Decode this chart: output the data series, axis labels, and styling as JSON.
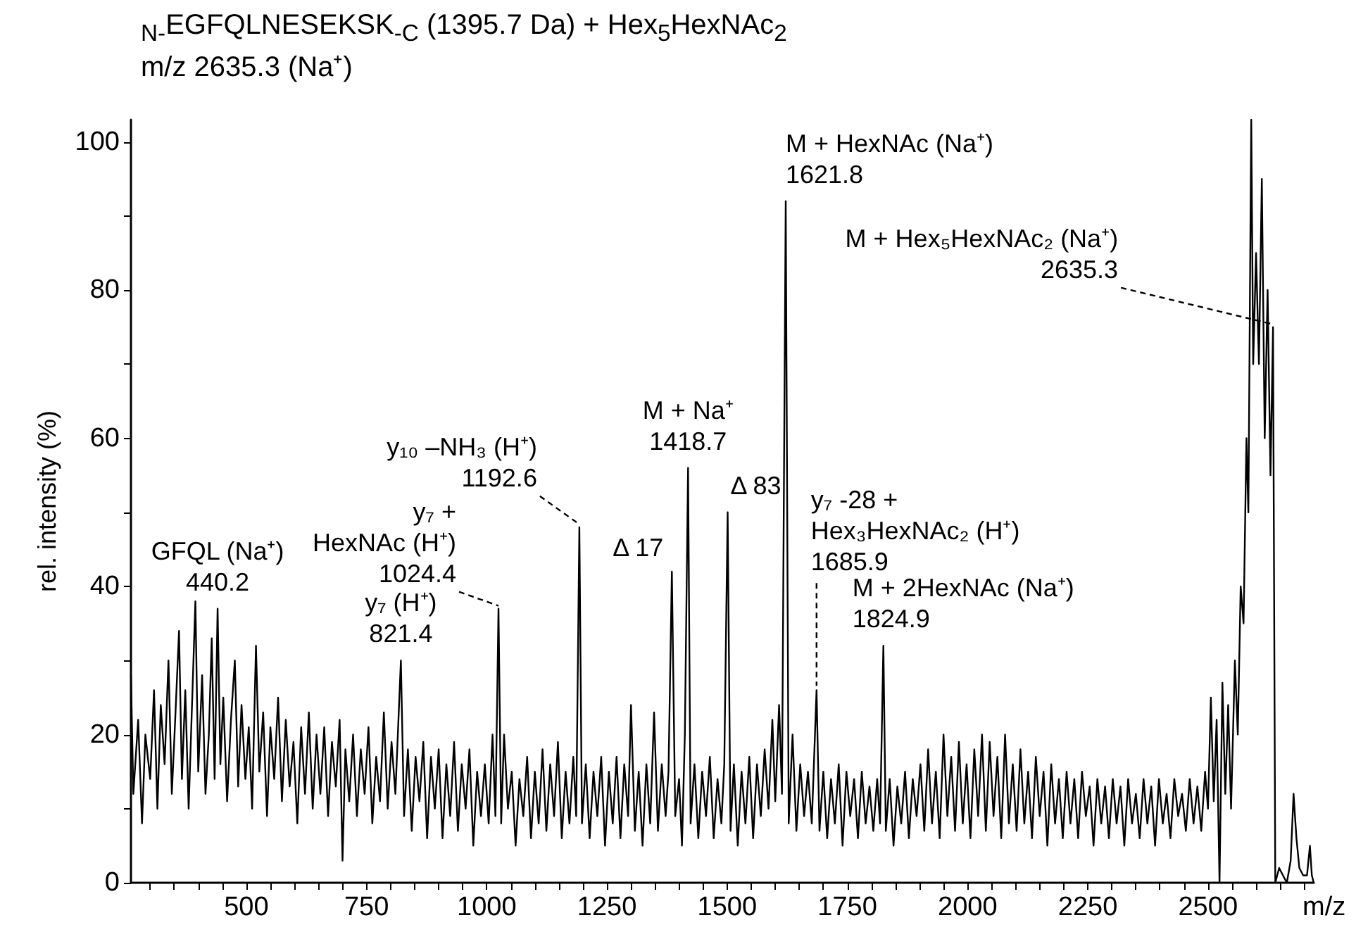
{
  "chart_data": {
    "type": "line",
    "title": "$_{N-}$EGFQLNESEKSK$_{-C}$ (1395.7 Da) + Hex$_{5}$HexNAc$_{2}$",
    "subtitle": "m/z 2635.3 (Na⁺)",
    "xlabel": "m/z",
    "ylabel": "rel. intensity (%)",
    "color": "#000000",
    "marker": "none",
    "x": [
      260,
      265,
      275,
      283,
      290,
      300,
      308,
      315,
      322,
      330,
      338,
      345,
      352,
      360,
      366,
      373,
      380,
      387,
      394,
      400,
      408,
      415,
      422,
      428,
      434,
      440.2,
      446,
      452,
      460,
      468,
      476,
      483,
      490,
      498,
      505,
      512,
      520,
      527,
      535,
      543,
      550,
      558,
      566,
      574,
      582,
      590,
      598,
      606,
      614,
      622,
      630,
      638,
      646,
      654,
      662,
      670,
      678,
      686,
      694,
      700,
      706,
      714,
      722,
      730,
      738,
      746,
      754,
      762,
      770,
      778,
      786,
      794,
      802,
      810,
      821.4,
      828,
      836,
      844,
      852,
      860,
      868,
      876,
      884,
      892,
      900,
      908,
      916,
      924,
      932,
      940,
      948,
      956,
      964,
      972,
      980,
      988,
      996,
      1004,
      1012,
      1018,
      1024.4,
      1030,
      1036,
      1044,
      1052,
      1060,
      1068,
      1076,
      1084,
      1092,
      1100,
      1108,
      1116,
      1124,
      1132,
      1140,
      1148,
      1156,
      1164,
      1172,
      1180,
      1186,
      1192.6,
      1198,
      1206,
      1214,
      1222,
      1230,
      1238,
      1246,
      1254,
      1262,
      1270,
      1278,
      1286,
      1294,
      1300,
      1308,
      1316,
      1324,
      1332,
      1340,
      1348,
      1356,
      1364,
      1372,
      1378,
      1385,
      1392,
      1400,
      1406,
      1412,
      1418.7,
      1424,
      1432,
      1440,
      1448,
      1456,
      1464,
      1472,
      1480,
      1488,
      1494,
      1501,
      1507,
      1514,
      1522,
      1530,
      1538,
      1546,
      1554,
      1562,
      1570,
      1578,
      1586,
      1594,
      1600,
      1608,
      1614,
      1621.8,
      1628,
      1636,
      1644,
      1652,
      1660,
      1668,
      1676,
      1685.9,
      1692,
      1700,
      1708,
      1716,
      1724,
      1732,
      1740,
      1748,
      1756,
      1764,
      1772,
      1780,
      1788,
      1796,
      1804,
      1812,
      1818,
      1824.9,
      1830,
      1838,
      1846,
      1854,
      1862,
      1870,
      1878,
      1886,
      1894,
      1902,
      1910,
      1918,
      1926,
      1934,
      1942,
      1950,
      1958,
      1966,
      1974,
      1982,
      1990,
      1998,
      2006,
      2014,
      2022,
      2030,
      2038,
      2046,
      2054,
      2062,
      2070,
      2078,
      2086,
      2094,
      2102,
      2110,
      2118,
      2126,
      2134,
      2142,
      2150,
      2158,
      2166,
      2174,
      2182,
      2190,
      2198,
      2206,
      2214,
      2222,
      2230,
      2238,
      2246,
      2254,
      2262,
      2270,
      2278,
      2286,
      2294,
      2302,
      2310,
      2318,
      2326,
      2334,
      2342,
      2350,
      2358,
      2366,
      2374,
      2382,
      2390,
      2398,
      2406,
      2414,
      2422,
      2430,
      2438,
      2446,
      2454,
      2462,
      2470,
      2478,
      2486,
      2494,
      2500,
      2506,
      2512,
      2518,
      2524,
      2530,
      2536,
      2542,
      2548,
      2556,
      2562,
      2568,
      2574,
      2580,
      2584,
      2590,
      2594,
      2600,
      2606,
      2612,
      2618,
      2624,
      2630,
      2635.3,
      2640,
      2648,
      2656,
      2664,
      2672,
      2678,
      2684,
      2690,
      2698,
      2706,
      2712,
      2716,
      2720
    ],
    "values": [
      28,
      12,
      22,
      8,
      20,
      14,
      26,
      10,
      24,
      16,
      30,
      12,
      22,
      34,
      14,
      26,
      10,
      24,
      38,
      15,
      28,
      12,
      20,
      33,
      14,
      37,
      16,
      25,
      11,
      22,
      30,
      13,
      24,
      14,
      21,
      10,
      32,
      15,
      23,
      9,
      21,
      14,
      25,
      11,
      22,
      13,
      19,
      8,
      21,
      12,
      23,
      10,
      20,
      12,
      21,
      9,
      19,
      13,
      22,
      3,
      18,
      11,
      20,
      9,
      18,
      12,
      21,
      8,
      17,
      11,
      23,
      10,
      19,
      12,
      30,
      9,
      18,
      7,
      17,
      11,
      19,
      6,
      17,
      10,
      18,
      6,
      16,
      9,
      19,
      7,
      16,
      10,
      18,
      5,
      15,
      9,
      16,
      8,
      20,
      9,
      37,
      8,
      20,
      10,
      15,
      5,
      14,
      9,
      17,
      6,
      15,
      8,
      18,
      7,
      16,
      9,
      19,
      6,
      15,
      8,
      17,
      9,
      48,
      8,
      16,
      6,
      15,
      9,
      17,
      5,
      15,
      8,
      17,
      6,
      16,
      9,
      24,
      7,
      15,
      5,
      16,
      8,
      23,
      7,
      16,
      9,
      15,
      42,
      9,
      14,
      5,
      20,
      56,
      8,
      16,
      6,
      15,
      9,
      17,
      6,
      14,
      8,
      16,
      50,
      7,
      16,
      5,
      15,
      8,
      17,
      6,
      16,
      9,
      18,
      10,
      22,
      11,
      24,
      12,
      92,
      8,
      20,
      7,
      16,
      9,
      15,
      8,
      26,
      7,
      15,
      6,
      14,
      8,
      16,
      5,
      15,
      9,
      14,
      6,
      15,
      8,
      13,
      7,
      14,
      8,
      32,
      7,
      14,
      5,
      13,
      8,
      15,
      6,
      14,
      9,
      16,
      7,
      18,
      8,
      15,
      6,
      20,
      9,
      17,
      7,
      19,
      8,
      16,
      6,
      18,
      9,
      20,
      7,
      19,
      9,
      17,
      6,
      20,
      8,
      16,
      7,
      18,
      8,
      15,
      6,
      17,
      9,
      15,
      5,
      16,
      8,
      14,
      6,
      15,
      8,
      14,
      6,
      15,
      9,
      13,
      5,
      14,
      8,
      13,
      6,
      14,
      8,
      13,
      5,
      14,
      8,
      12,
      6,
      14,
      8,
      13,
      5,
      14,
      8,
      12,
      6,
      14,
      9,
      12,
      7,
      14,
      8,
      13,
      7,
      15,
      10,
      25,
      11,
      22,
      0,
      27,
      12,
      24,
      10,
      30,
      20,
      40,
      35,
      60,
      50,
      103,
      70,
      85,
      70,
      95,
      60,
      80,
      55,
      75,
      0,
      2,
      1,
      0,
      3,
      12,
      6,
      2,
      1,
      1,
      5,
      1,
      0
    ],
    "xlim": [
      260,
      2720
    ],
    "ylim": [
      0,
      103
    ],
    "xticks": [
      {
        "value": 300,
        "label": null
      },
      {
        "value": 350,
        "label": null
      },
      {
        "value": 400,
        "label": null
      },
      {
        "value": 450,
        "label": null
      },
      500,
      {
        "value": 550,
        "label": null
      },
      {
        "value": 600,
        "label": null
      },
      {
        "value": 650,
        "label": null
      },
      {
        "value": 700,
        "label": null
      },
      750,
      {
        "value": 800,
        "label": null
      },
      {
        "value": 850,
        "label": null
      },
      {
        "value": 900,
        "label": null
      },
      {
        "value": 950,
        "label": null
      },
      1000,
      {
        "value": 1050,
        "label": null
      },
      {
        "value": 1100,
        "label": null
      },
      {
        "value": 1150,
        "label": null
      },
      {
        "value": 1200,
        "label": null
      },
      1250,
      {
        "value": 1300,
        "label": null
      },
      {
        "value": 1350,
        "label": null
      },
      {
        "value": 1400,
        "label": null
      },
      {
        "value": 1450,
        "label": null
      },
      1500,
      {
        "value": 1550,
        "label": null
      },
      {
        "value": 1600,
        "label": null
      },
      {
        "value": 1650,
        "label": null
      },
      {
        "value": 1700,
        "label": null
      },
      1750,
      {
        "value": 1800,
        "label": null
      },
      {
        "value": 1850,
        "label": null
      },
      {
        "value": 1900,
        "label": null
      },
      {
        "value": 1950,
        "label": null
      },
      2000,
      {
        "value": 2050,
        "label": null
      },
      {
        "value": 2100,
        "label": null
      },
      {
        "value": 2150,
        "label": null
      },
      {
        "value": 2200,
        "label": null
      },
      2250,
      {
        "value": 2300,
        "label": null
      },
      {
        "value": 2350,
        "label": null
      },
      {
        "value": 2400,
        "label": null
      },
      {
        "value": 2450,
        "label": null
      },
      2500,
      {
        "value": 2550,
        "label": null
      },
      {
        "value": 2600,
        "label": null
      },
      {
        "value": 2650,
        "label": null
      },
      {
        "value": 2700,
        "label": null
      }
    ],
    "yticks": [
      0,
      {
        "value": 10,
        "label": null
      },
      20,
      {
        "value": 30,
        "label": null
      },
      40,
      {
        "value": 50,
        "label": null
      },
      60,
      {
        "value": 70,
        "label": null
      },
      80,
      {
        "value": 90,
        "label": null
      },
      100
    ],
    "annotations": [
      {
        "text": "GFQL (Na⁺)\n440.2",
        "x": 440.2,
        "y": 37
      },
      {
        "text": "y₇ (H⁺)\n821.4",
        "x": 821.4,
        "y": 30
      },
      {
        "text": "y₇ +\nHexNAc (H⁺)\n1024.4",
        "x": 1024.4,
        "y": 37
      },
      {
        "text": "y₁₀ –NH₃ (H⁺)\n1192.6",
        "x": 1192.6,
        "y": 48
      },
      {
        "text": "M + Na⁺\n1418.7",
        "x": 1418.7,
        "y": 56
      },
      {
        "text": "Δ 17",
        "x": 1385,
        "y": 42
      },
      {
        "text": "Δ 83",
        "x": 1501,
        "y": 50
      },
      {
        "text": "M + HexNAc (Na⁺)\n1621.8",
        "x": 1621.8,
        "y": 92
      },
      {
        "text": "y₇ -28 +\nHex₃HexNAc₂ (H⁺)\n1685.9",
        "x": 1685.9,
        "y": 26
      },
      {
        "text": "M + 2HexNAc (Na⁺)\n1824.9",
        "x": 1824.9,
        "y": 32
      },
      {
        "text": "M + Hex₅HexNAc₂ (Na⁺)\n2635.3",
        "x": 2635.3,
        "y": 75
      }
    ]
  }
}
